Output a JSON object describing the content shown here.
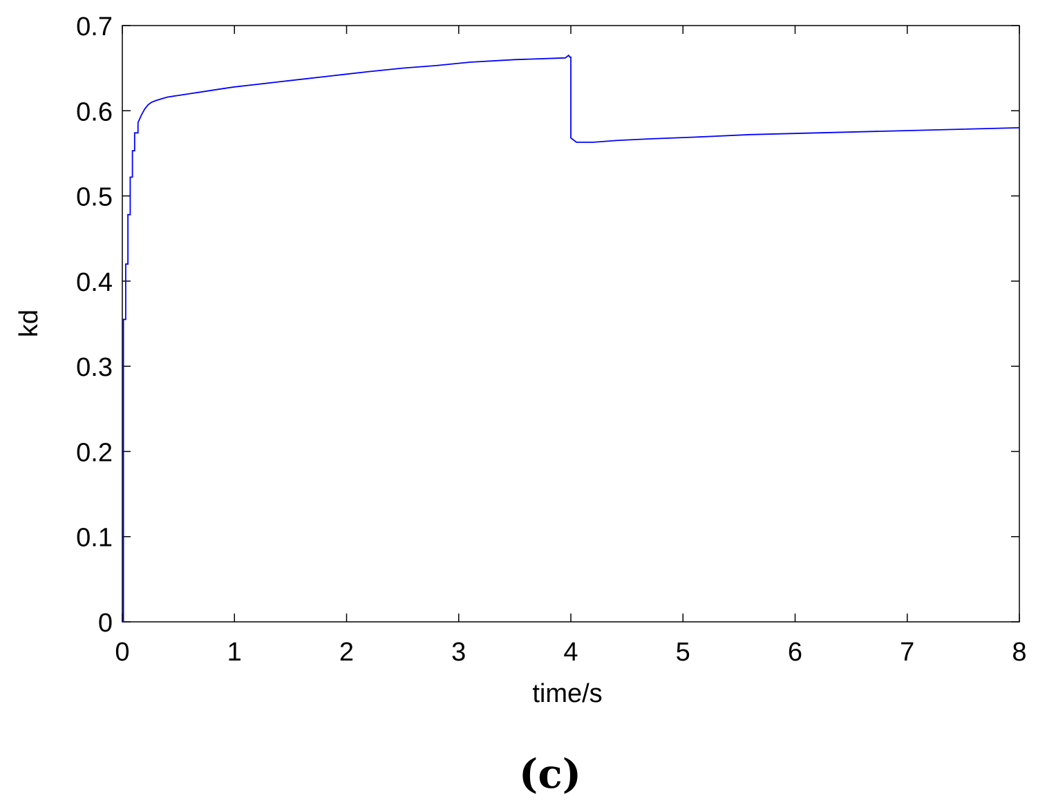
{
  "chart_data": {
    "type": "line",
    "title": "",
    "xlabel": "time/s",
    "ylabel": "kd",
    "caption": "(c)",
    "xlim": [
      0,
      8
    ],
    "ylim": [
      0,
      0.7
    ],
    "xticks": [
      0,
      1,
      2,
      3,
      4,
      5,
      6,
      7,
      8
    ],
    "yticks": [
      0,
      0.1,
      0.2,
      0.3,
      0.4,
      0.5,
      0.6,
      0.7
    ],
    "xtick_labels": [
      "0",
      "1",
      "2",
      "3",
      "4",
      "5",
      "6",
      "7",
      "8"
    ],
    "ytick_labels": [
      "0",
      "0.1",
      "0.2",
      "0.3",
      "0.4",
      "0.5",
      "0.6",
      "0.7"
    ],
    "grid": false,
    "line_color": "#0000ff",
    "series": [
      {
        "x": [
          0,
          0.01,
          0.01,
          0.03,
          0.03,
          0.05,
          0.05,
          0.07,
          0.07,
          0.09,
          0.09,
          0.11,
          0.11,
          0.14,
          0.14,
          0.17,
          0.2,
          0.23,
          0.26,
          0.3,
          0.35,
          0.4,
          0.5,
          0.6,
          0.7,
          0.8,
          0.9,
          1.0,
          1.2,
          1.4,
          1.6,
          1.8,
          2.0,
          2.2,
          2.5,
          2.8,
          3.1,
          3.5,
          3.95,
          3.98,
          3.99,
          4.0,
          4.0,
          4.05,
          4.2,
          4.4,
          4.7,
          5.1,
          5.6,
          6.2,
          7.1,
          8.0
        ],
        "y": [
          0.0,
          0.0,
          0.355,
          0.355,
          0.42,
          0.42,
          0.478,
          0.478,
          0.522,
          0.522,
          0.553,
          0.553,
          0.574,
          0.574,
          0.586,
          0.595,
          0.602,
          0.607,
          0.61,
          0.612,
          0.614,
          0.616,
          0.618,
          0.62,
          0.622,
          0.624,
          0.626,
          0.628,
          0.631,
          0.634,
          0.637,
          0.64,
          0.643,
          0.646,
          0.65,
          0.653,
          0.657,
          0.66,
          0.662,
          0.665,
          0.663,
          0.663,
          0.568,
          0.563,
          0.563,
          0.565,
          0.567,
          0.569,
          0.572,
          0.574,
          0.577,
          0.58
        ]
      }
    ]
  }
}
